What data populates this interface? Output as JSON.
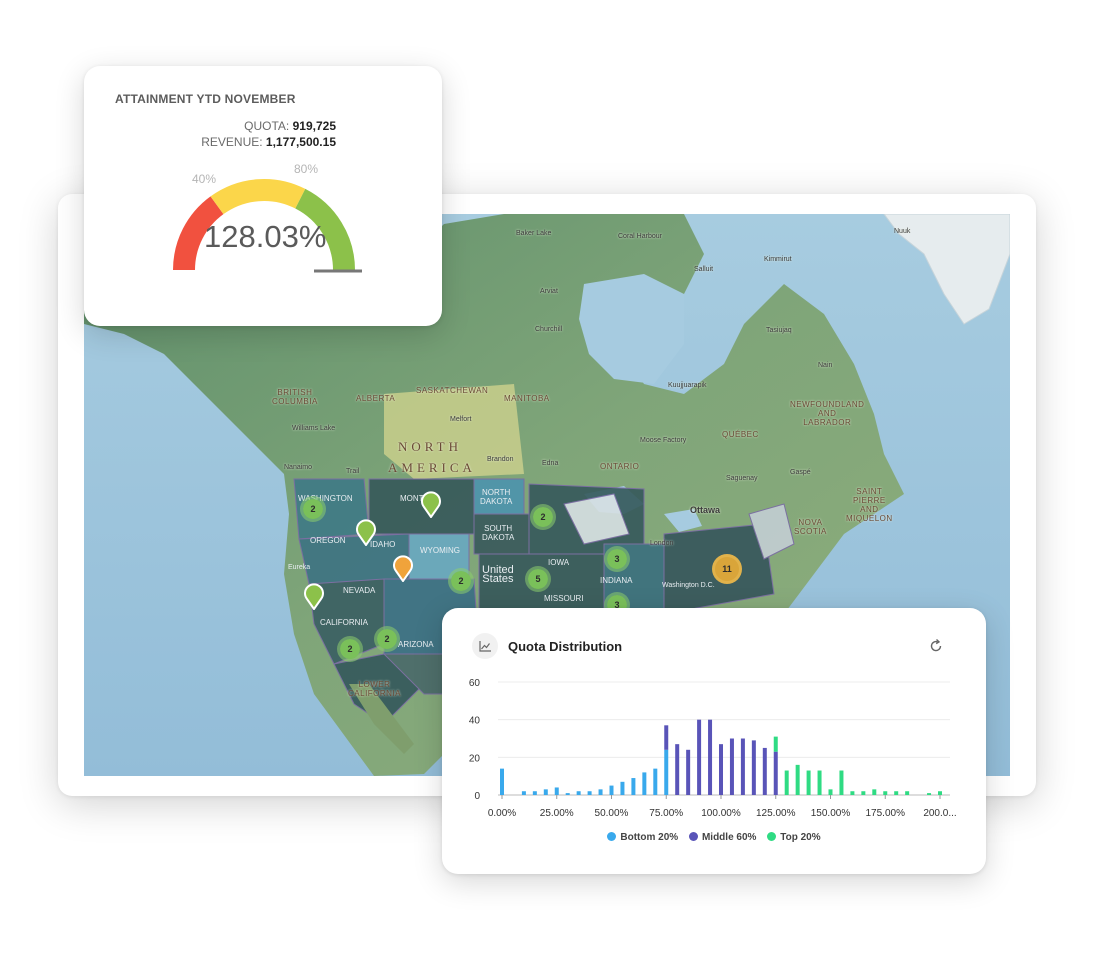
{
  "gauge": {
    "title": "ATTAINMENT YTD NOVEMBER",
    "quota_label": "QUOTA:",
    "quota_value": "919,725",
    "revenue_label": "REVENUE:",
    "revenue_value": "1,177,500.15",
    "mark_low": "40%",
    "mark_high": "80%",
    "value": "128.03%",
    "colors": {
      "low": "#f1513f",
      "mid": "#fbd64a",
      "high": "#8cc14a"
    }
  },
  "map": {
    "continent_line1": "NORTH",
    "continent_line2": "AMERICA",
    "provinces": [
      "BRITISH\nCOLUMBIA",
      "ALBERTA",
      "SASKATCHEWAN",
      "MANITOBA",
      "ONTARIO",
      "QUÉBEC",
      "NEWFOUNDLAND\nAND\nLABRADOR",
      "SAINT\nPIERRE\nAND\nMIQUELON",
      "NOVA\nSCOTIA",
      "LOWER\nCALIFORNIA"
    ],
    "states": [
      "NORTH\nDAKOTA",
      "SOUTH\nDAKOTA",
      "WYOMING",
      "OREGON",
      "NEVADA",
      "CALIFORNIA",
      "IDAHO",
      "IOWA",
      "INDIANA",
      "MISSOURI",
      "WASHINGTON",
      "MONTANA",
      "ARIZONA",
      "United\nStates"
    ],
    "places": [
      "Baker Lake",
      "Coral Harbour",
      "Nuuk",
      "Kimmirut",
      "Salluit",
      "Arviat",
      "Churchill",
      "Tasiujaq",
      "Nain",
      "Kuujjuarapik",
      "Williams Lake",
      "Nanaimo",
      "Trail",
      "Melfort",
      "Brandon",
      "Edna",
      "Moose Factory",
      "Saguenay",
      "Gaspé",
      "Ottawa",
      "London",
      "Washington D.C.",
      "Eureka"
    ],
    "clusters": [
      "2",
      "2",
      "3",
      "2",
      "5",
      "11",
      "2",
      "2",
      "3"
    ]
  },
  "distribution": {
    "title": "Quota Distribution",
    "icon": "line-chart-icon",
    "refresh_icon": "refresh-icon"
  },
  "chart_data": {
    "type": "bar",
    "title": "Quota Distribution",
    "xlabel": "",
    "ylabel": "",
    "ylim": [
      0,
      60
    ],
    "yticks": [
      "0",
      "20",
      "40",
      "60"
    ],
    "xticks": [
      "0.00%",
      "25.00%",
      "50.00%",
      "75.00%",
      "100.00%",
      "125.00%",
      "150.00%",
      "175.00%",
      "200.0..."
    ],
    "xrange": [
      0,
      200
    ],
    "bin_width": 5,
    "grid": true,
    "legend_position": "bottom",
    "series": [
      {
        "name": "Bottom 20%",
        "color": "#39a9ec",
        "points": [
          [
            0,
            14
          ],
          [
            10,
            2
          ],
          [
            15,
            2
          ],
          [
            20,
            3
          ],
          [
            25,
            4
          ],
          [
            30,
            1
          ],
          [
            35,
            2
          ],
          [
            40,
            2
          ],
          [
            45,
            3
          ],
          [
            50,
            5
          ],
          [
            55,
            7
          ],
          [
            60,
            9
          ],
          [
            65,
            12
          ],
          [
            70,
            14
          ],
          [
            75,
            24
          ]
        ]
      },
      {
        "name": "Middle 60%",
        "color": "#5954b8",
        "points": [
          [
            75,
            13
          ],
          [
            80,
            27
          ],
          [
            85,
            24
          ],
          [
            90,
            40
          ],
          [
            95,
            40
          ],
          [
            100,
            27
          ],
          [
            105,
            30
          ],
          [
            110,
            30
          ],
          [
            115,
            29
          ],
          [
            120,
            25
          ],
          [
            125,
            23
          ]
        ]
      },
      {
        "name": "Top 20%",
        "color": "#2fdb83",
        "points": [
          [
            125,
            8
          ],
          [
            130,
            13
          ],
          [
            135,
            16
          ],
          [
            140,
            13
          ],
          [
            145,
            13
          ],
          [
            150,
            3
          ],
          [
            155,
            13
          ],
          [
            160,
            2
          ],
          [
            165,
            2
          ],
          [
            170,
            3
          ],
          [
            175,
            2
          ],
          [
            180,
            2
          ],
          [
            185,
            2
          ],
          [
            190,
            0
          ],
          [
            195,
            1
          ],
          [
            200,
            2
          ]
        ]
      }
    ]
  }
}
